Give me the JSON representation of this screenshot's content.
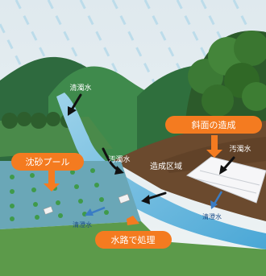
{
  "labels": {
    "top_stream": "清濁水",
    "muddy_water_1": "汚濁水",
    "muddy_water_2": "汚濁水",
    "slope_badge": "斜面の造成",
    "construction_area": "造成区域",
    "paddy_badge": "沈砂プール",
    "clean_water_1": "清澄水",
    "clean_water_2": "清澄水",
    "channel_badge": "水路で処理"
  },
  "colors": {
    "badge_orange": "#f47b20",
    "river_blue": "#5fb8e0",
    "arrow_black": "#111111",
    "arrow_blue": "#3a7cc4"
  }
}
